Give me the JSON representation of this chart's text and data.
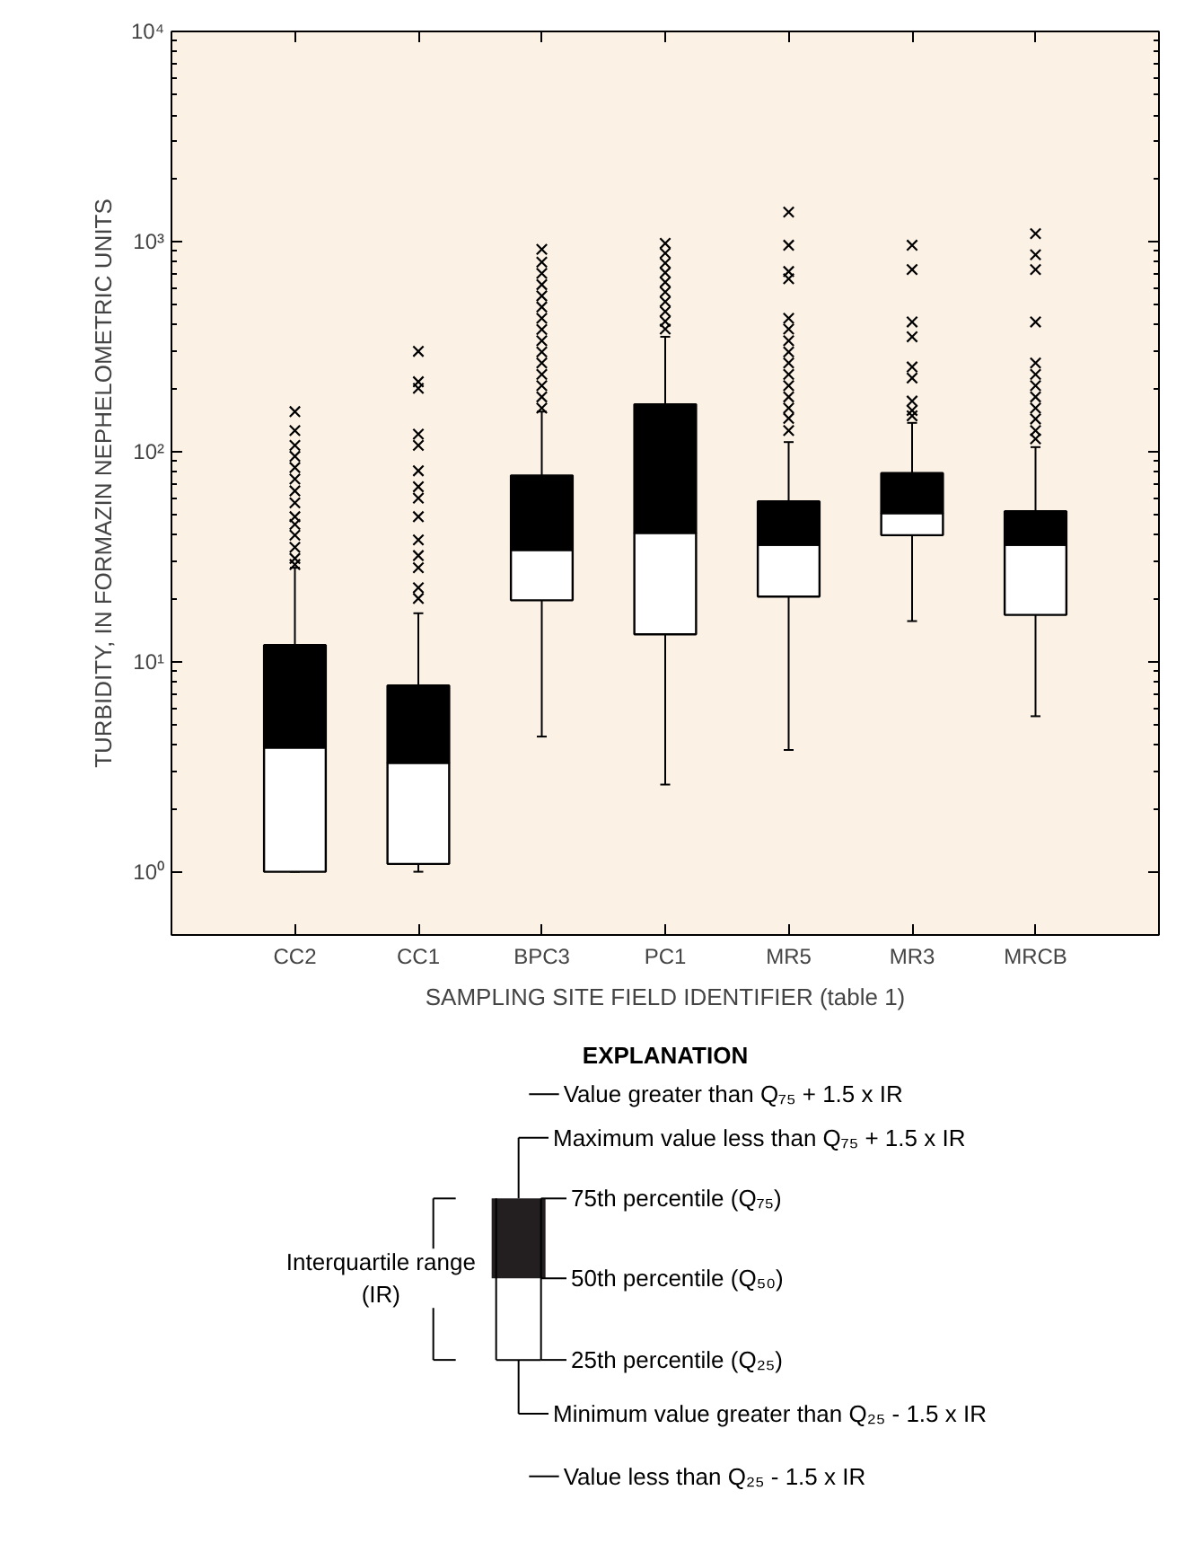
{
  "chart_data": {
    "type": "box",
    "ylabel": "TURBIDITY, IN FORMAZIN NEPHELOMETRIC UNITS",
    "xlabel": "SAMPLING SITE FIELD IDENTIFIER (table 1)",
    "categories": [
      "CC2",
      "CC1",
      "BPC3",
      "PC1",
      "MR5",
      "MR3",
      "MRCB"
    ],
    "boxes": [
      {
        "low": 1.0,
        "q1": 1.0,
        "median": 3.9,
        "q3": 12,
        "high": 28,
        "outliers": [
          155,
          126,
          107,
          95,
          84,
          74,
          65,
          57,
          49,
          45,
          40,
          35,
          31,
          29
        ]
      },
      {
        "low": 1.0,
        "q1": 1.09,
        "median": 3.3,
        "q3": 7.7,
        "high": 17,
        "outliers": [
          300,
          215,
          200,
          121,
          107,
          81,
          68,
          60,
          49,
          38,
          32,
          28,
          22.5,
          20
        ]
      },
      {
        "low": 4.4,
        "q1": 19.6,
        "median": 34,
        "q3": 77,
        "high": 155,
        "outliers": [
          918,
          798,
          705,
          623,
          551,
          488,
          431,
          381,
          337,
          298,
          264,
          233,
          206,
          182,
          161
        ]
      },
      {
        "low": 2.6,
        "q1": 13.5,
        "median": 41,
        "q3": 168,
        "high": 352,
        "outliers": [
          980,
          880,
          790,
          711,
          640,
          575,
          517,
          464,
          417,
          383
        ]
      },
      {
        "low": 3.8,
        "q1": 20.4,
        "median": 36,
        "q3": 58,
        "high": 111,
        "outliers": [
          1380,
          960,
          720,
          665,
          431,
          383,
          337,
          298,
          264,
          233,
          206,
          182,
          161,
          144,
          126
        ]
      },
      {
        "low": 15.6,
        "q1": 40,
        "median": 51,
        "q3": 79,
        "high": 137,
        "outliers": [
          960,
          735,
          414,
          352,
          253,
          224,
          174,
          157,
          148
        ]
      },
      {
        "low": 5.5,
        "q1": 16.7,
        "median": 36,
        "q3": 52,
        "high": 105,
        "outliers": [
          1090,
          865,
          735,
          414,
          264,
          233,
          206,
          182,
          161,
          143,
          126,
          115
        ]
      }
    ],
    "log": true,
    "ylim": [
      0.5,
      10000
    ],
    "yticks": [
      {
        "value": 1,
        "label": "10⁰"
      },
      {
        "value": 10,
        "label": "10¹"
      },
      {
        "value": 100,
        "label": "10²"
      },
      {
        "value": 1000,
        "label": "10³"
      },
      {
        "value": 10000,
        "label": "10⁴"
      }
    ],
    "marker": "cross",
    "grid": false,
    "annotations": [
      "EXPLANATION",
      "Value greater than Q₇₅ + 1.5 x IR",
      "Maximum value less than Q₇₅ + 1.5 x IR",
      "75th percentile (Q₇₅)",
      "50th percentile (Q₅₀)",
      "25th percentile (Q₂₅)",
      "Minimum value greater than Q₂₅ - 1.5 x IR",
      "Value less than Q₂₅ - 1.5 x IR",
      "Interquartile range (IR)"
    ]
  }
}
